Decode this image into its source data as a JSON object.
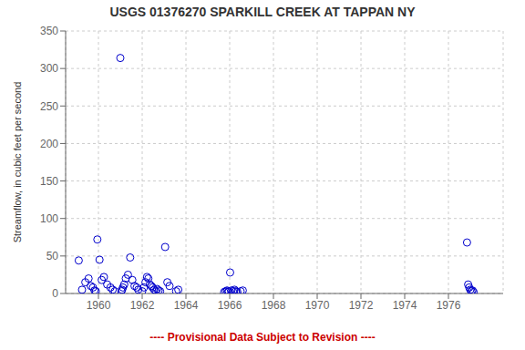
{
  "chart_data": {
    "type": "scatter",
    "title": "USGS 01376270 SPARKILL CREEK AT TAPPAN NY",
    "ylabel": "Streamflow, in cubic feet per second",
    "annotations": [
      {
        "text": "---- Provisional Data Subject to Revision ----",
        "color": "#cc0000"
      }
    ],
    "x": [
      1959.1,
      1959.25,
      1959.4,
      1959.55,
      1959.65,
      1959.75,
      1959.82,
      1959.88,
      1959.95,
      1960.05,
      1960.15,
      1960.25,
      1960.4,
      1960.55,
      1960.65,
      1960.75,
      1961.0,
      1961.05,
      1961.08,
      1961.12,
      1961.18,
      1961.25,
      1961.35,
      1961.45,
      1961.55,
      1961.65,
      1961.75,
      1961.82,
      1962.0,
      1962.08,
      1962.15,
      1962.22,
      1962.28,
      1962.35,
      1962.42,
      1962.48,
      1962.55,
      1962.62,
      1962.68,
      1962.75,
      1962.82,
      1963.05,
      1963.15,
      1963.25,
      1963.55,
      1963.65,
      1965.75,
      1965.82,
      1965.88,
      1965.92,
      1965.96,
      1966.02,
      1966.08,
      1966.15,
      1966.22,
      1966.28,
      1966.35,
      1966.5,
      1966.6,
      1976.85,
      1976.9,
      1976.95,
      1977.0,
      1977.05,
      1977.1,
      1977.15
    ],
    "values": [
      44,
      5,
      15,
      20,
      10,
      8,
      4,
      3,
      72,
      45,
      18,
      22,
      12,
      8,
      5,
      3,
      314,
      3,
      5,
      8,
      12,
      20,
      25,
      48,
      18,
      10,
      8,
      5,
      3,
      8,
      15,
      22,
      20,
      12,
      10,
      8,
      5,
      3,
      6,
      4,
      3,
      62,
      15,
      10,
      3,
      5,
      2,
      3,
      4,
      2,
      3,
      28,
      4,
      3,
      5,
      3,
      2,
      3,
      4,
      68,
      12,
      8,
      5,
      3,
      4,
      2
    ],
    "color": "#0000cc",
    "marker": "circle",
    "xlim": [
      1958.5,
      1978.5
    ],
    "ylim": [
      0,
      350
    ],
    "xticks": [
      1960,
      1962,
      1964,
      1966,
      1968,
      1970,
      1972,
      1974,
      1976
    ],
    "yticks": [
      0,
      50,
      100,
      150,
      200,
      250,
      300,
      350
    ],
    "grid": true
  }
}
